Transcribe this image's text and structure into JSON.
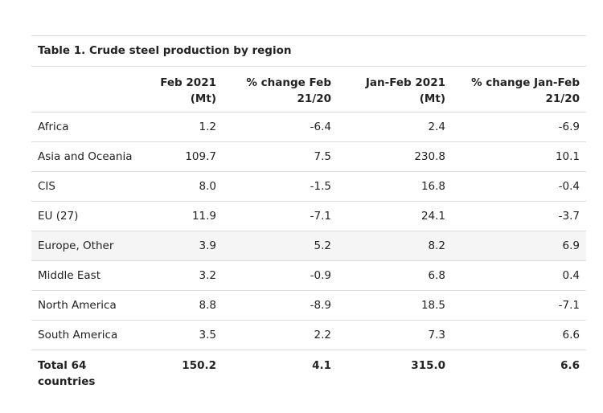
{
  "table": {
    "caption": "Table 1. Crude steel production by region",
    "headers": [
      "",
      "Feb 2021 (Mt)",
      "% change Feb 21/20",
      "Jan-Feb 2021 (Mt)",
      "% change Jan-Feb 21/20"
    ],
    "header_lines": [
      [
        "",
        ""
      ],
      [
        "Feb 2021",
        "(Mt)"
      ],
      [
        "% change Feb",
        "21/20"
      ],
      [
        "Jan-Feb 2021",
        "(Mt)"
      ],
      [
        "% change Jan-Feb",
        "21/20"
      ]
    ],
    "rows": [
      {
        "region": "Africa",
        "feb_2021": "1.2",
        "pct_feb": "-6.4",
        "jan_feb_2021": "2.4",
        "pct_jan_feb": "-6.9"
      },
      {
        "region": "Asia and Oceania",
        "feb_2021": "109.7",
        "pct_feb": "7.5",
        "jan_feb_2021": "230.8",
        "pct_jan_feb": "10.1"
      },
      {
        "region": "CIS",
        "feb_2021": "8.0",
        "pct_feb": "-1.5",
        "jan_feb_2021": "16.8",
        "pct_jan_feb": "-0.4"
      },
      {
        "region": "EU (27)",
        "feb_2021": "11.9",
        "pct_feb": "-7.1",
        "jan_feb_2021": "24.1",
        "pct_jan_feb": "-3.7"
      },
      {
        "region": "Europe, Other",
        "feb_2021": "3.9",
        "pct_feb": "5.2",
        "jan_feb_2021": "8.2",
        "pct_jan_feb": "6.9"
      },
      {
        "region": "Middle East",
        "feb_2021": "3.2",
        "pct_feb": "-0.9",
        "jan_feb_2021": "6.8",
        "pct_jan_feb": "0.4"
      },
      {
        "region": "North America",
        "feb_2021": "8.8",
        "pct_feb": "-8.9",
        "jan_feb_2021": "18.5",
        "pct_jan_feb": "-7.1"
      },
      {
        "region": "South America",
        "feb_2021": "3.5",
        "pct_feb": "2.2",
        "jan_feb_2021": "7.3",
        "pct_jan_feb": "6.6"
      }
    ],
    "total": {
      "region_lines": [
        "Total 64",
        "countries"
      ],
      "feb_2021": "150.2",
      "pct_feb": "4.1",
      "jan_feb_2021": "315.0",
      "pct_jan_feb": "6.6"
    },
    "highlighted_row": "Europe, Other",
    "colors": {
      "rule": "#dcdcdc",
      "highlight": "#f5f5f5",
      "text": "#222222"
    }
  }
}
